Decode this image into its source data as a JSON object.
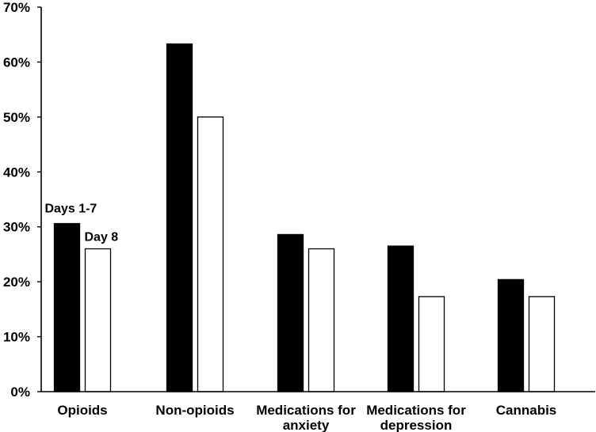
{
  "chart_data": {
    "type": "bar",
    "categories": [
      [
        "Opioids"
      ],
      [
        "Non-opioids"
      ],
      [
        "Medications for",
        "anxiety"
      ],
      [
        "Medications for",
        "depression"
      ],
      [
        "Cannabis"
      ]
    ],
    "series": [
      {
        "name": "Days 1-7",
        "values": [
          30.6,
          63.3,
          28.6,
          26.5,
          20.4
        ],
        "fill": "#000000",
        "stroke": "#000000"
      },
      {
        "name": "Day 8",
        "values": [
          26.0,
          50.0,
          26.0,
          17.3,
          17.3
        ],
        "fill": "#ffffff",
        "stroke": "#000000"
      }
    ],
    "y_ticks": [
      "0%",
      "10%",
      "20%",
      "30%",
      "40%",
      "50%",
      "60%",
      "70%"
    ],
    "ylim": [
      0,
      70
    ],
    "ytick_step": 10,
    "grid": false,
    "legend": "series names printed directly above the first category's bars"
  }
}
